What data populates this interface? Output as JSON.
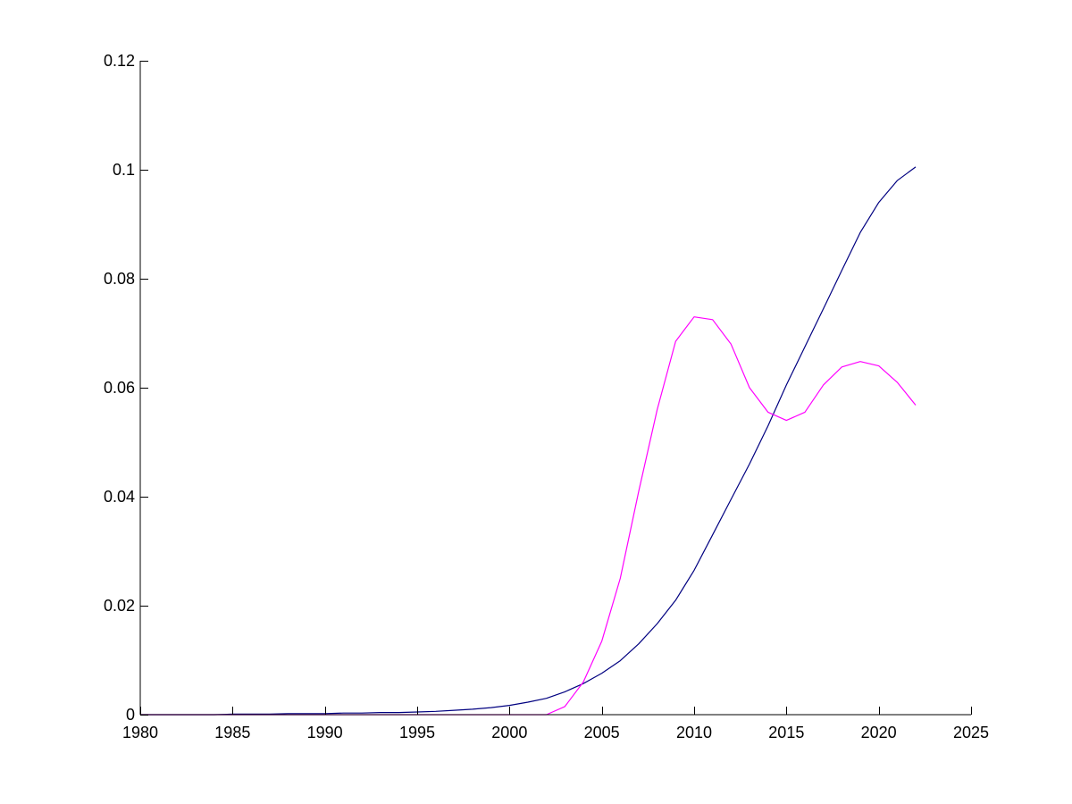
{
  "chart_data": {
    "type": "line",
    "title": "",
    "xlabel": "",
    "ylabel": "",
    "xlim": [
      1980,
      2025
    ],
    "ylim": [
      0,
      0.12
    ],
    "grid": false,
    "box": false,
    "x_ticks": [
      1980,
      1985,
      1990,
      1995,
      2000,
      2005,
      2010,
      2015,
      2020,
      2025
    ],
    "x_tick_labels": [
      "1980",
      "1985",
      "1990",
      "1995",
      "2000",
      "2005",
      "2010",
      "2015",
      "2020",
      "2025"
    ],
    "y_ticks": [
      0,
      0.02,
      0.04,
      0.06,
      0.08,
      0.1,
      0.12
    ],
    "y_tick_labels": [
      "0",
      "0.02",
      "0.04",
      "0.06",
      "0.08",
      "0.1",
      "0.12"
    ],
    "x": [
      1980,
      1981,
      1982,
      1983,
      1984,
      1985,
      1986,
      1987,
      1988,
      1989,
      1990,
      1991,
      1992,
      1993,
      1994,
      1995,
      1996,
      1997,
      1998,
      1999,
      2000,
      2001,
      2002,
      2003,
      2004,
      2005,
      2006,
      2007,
      2008,
      2009,
      2010,
      2011,
      2012,
      2013,
      2014,
      2015,
      2016,
      2017,
      2018,
      2019,
      2020,
      2021,
      2022
    ],
    "series": [
      {
        "color": "#000080",
        "values": [
          0.0,
          0.0,
          0.0,
          0.0,
          0.0,
          0.0001,
          0.0001,
          0.0001,
          0.0002,
          0.0002,
          0.0002,
          0.0003,
          0.0003,
          0.0004,
          0.0004,
          0.0005,
          0.0006,
          0.0008,
          0.001,
          0.0013,
          0.0017,
          0.0023,
          0.003,
          0.0042,
          0.0057,
          0.0076,
          0.0099,
          0.013,
          0.0167,
          0.021,
          0.0265,
          0.033,
          0.0395,
          0.046,
          0.053,
          0.0605,
          0.0675,
          0.0745,
          0.0815,
          0.0885,
          0.094,
          0.098,
          0.1005
        ]
      },
      {
        "color": "#ff00ff",
        "values": [
          0.0,
          0.0,
          0.0,
          0.0,
          0.0,
          0.0,
          0.0,
          0.0,
          0.0,
          0.0,
          0.0,
          0.0,
          0.0,
          0.0,
          0.0,
          0.0,
          0.0,
          0.0,
          0.0,
          0.0,
          0.0,
          0.0,
          0.0,
          0.0015,
          0.006,
          0.0135,
          0.025,
          0.041,
          0.056,
          0.0685,
          0.073,
          0.0725,
          0.068,
          0.06,
          0.0555,
          0.054,
          0.0555,
          0.0605,
          0.0638,
          0.0648,
          0.064,
          0.061,
          0.0568
        ]
      }
    ]
  }
}
